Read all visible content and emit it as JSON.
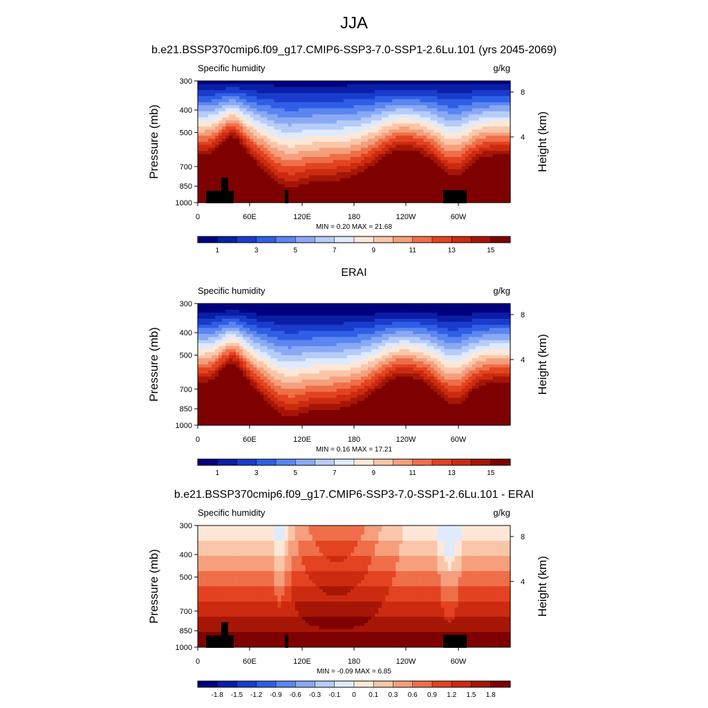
{
  "page": {
    "main_title": "JJA"
  },
  "colorbar_colors": [
    "#00007f",
    "#0a1ea6",
    "#1a3ccc",
    "#2f5fe6",
    "#5b86f0",
    "#8aa9f5",
    "#b6cdf9",
    "#dfeafc",
    "#fde8d8",
    "#fac6aa",
    "#f59f7c",
    "#ee6f49",
    "#e34320",
    "#cc2b10",
    "#a61606",
    "#7f0000"
  ],
  "chart_data": [
    {
      "type": "heatmap",
      "id": "model",
      "title": "b.e21.BSSP370cmip6.f09_g17.CMIP6-SSP3-7.0-SSP1-2.6Lu.101 (yrs 2045-2069)",
      "left_label": "Specific humidity",
      "right_label": "g/kg",
      "ylabel": "Pressure (mb)",
      "y2label": "Height (km)",
      "yticks": [
        "300",
        "400",
        "500",
        "700",
        "850",
        "1000"
      ],
      "y2ticks": [
        "8",
        "4"
      ],
      "xticks": [
        "0",
        "60E",
        "120E",
        "180",
        "120W",
        "60W"
      ],
      "stats": "MIN =   0.20  MAX =  21.68",
      "colorbar_labels": [
        "1",
        "3",
        "5",
        "7",
        "9",
        "11",
        "13",
        "15"
      ]
    },
    {
      "type": "heatmap",
      "id": "obs",
      "title": "ERAI",
      "left_label": "Specific humidity",
      "right_label": "g/kg",
      "ylabel": "Pressure (mb)",
      "y2label": "Height (km)",
      "yticks": [
        "300",
        "400",
        "500",
        "700",
        "850",
        "1000"
      ],
      "y2ticks": [
        "8",
        "4"
      ],
      "xticks": [
        "0",
        "60E",
        "120E",
        "180",
        "120W",
        "60W"
      ],
      "stats": "MIN =   0.16  MAX =  17.21",
      "colorbar_labels": [
        "1",
        "3",
        "5",
        "7",
        "9",
        "11",
        "13",
        "15"
      ]
    },
    {
      "type": "heatmap",
      "id": "diff",
      "title": "b.e21.BSSP370cmip6.f09_g17.CMIP6-SSP3-7.0-SSP1-2.6Lu.101 - ERAI",
      "left_label": "Specific humidity",
      "right_label": "g/kg",
      "ylabel": "Pressure (mb)",
      "y2label": "Height (km)",
      "yticks": [
        "300",
        "400",
        "500",
        "700",
        "850",
        "1000"
      ],
      "y2ticks": [
        "8",
        "4"
      ],
      "xticks": [
        "0",
        "60E",
        "120E",
        "180",
        "120W",
        "60W"
      ],
      "stats": "MIN =  -0.09  MAX =   6.85",
      "colorbar_labels": [
        "-1.8",
        "-1.5",
        "-1.2",
        "-0.9",
        "-0.6",
        "-0.3",
        "-0.1",
        "0",
        "0.1",
        "0.3",
        "0.6",
        "0.9",
        "1.2",
        "1.5",
        "1.8"
      ]
    }
  ]
}
